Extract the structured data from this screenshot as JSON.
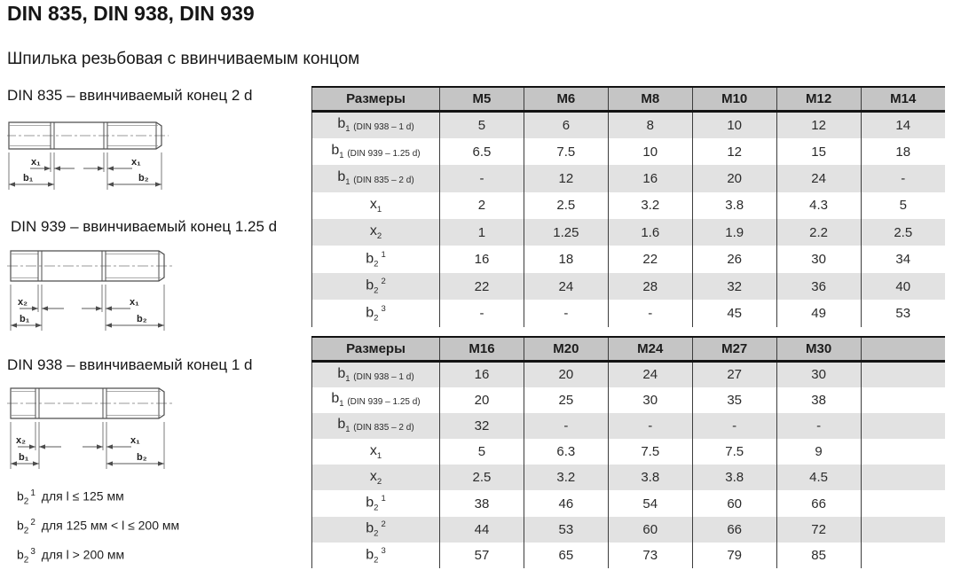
{
  "page": {
    "title": "DIN 835, DIN 938, DIN 939",
    "subtitle": "Шпилька резьбовая с ввинчиваемым концом"
  },
  "drawings": [
    {
      "label": "DIN 835 – ввинчиваемый конец 2 d",
      "dim_labels": {
        "x_left": "x₁",
        "x_right": "x₁",
        "b_left": "b₁",
        "b_right": "b₂"
      }
    },
    {
      "label": "DIN 939 – ввинчиваемый конец 1.25 d",
      "dim_labels": {
        "x_left": "x₂",
        "x_right": "x₁",
        "b_left": "b₁",
        "b_right": "b₂"
      }
    },
    {
      "label": "DIN 938 – ввинчиваемый конец 1 d",
      "dim_labels": {
        "x_left": "x₂",
        "x_right": "x₁",
        "b_left": "b₁",
        "b_right": "b₂"
      }
    }
  ],
  "tables": [
    {
      "columns": [
        "Размеры",
        "M5",
        "M6",
        "M8",
        "M10",
        "M12",
        "M14"
      ],
      "rows": [
        {
          "label": {
            "main": "b",
            "sub": "1",
            "note": "(DIN 938 – 1 d)"
          },
          "values": [
            "5",
            "6",
            "8",
            "10",
            "12",
            "14"
          ]
        },
        {
          "label": {
            "main": "b",
            "sub": "1",
            "note": "(DIN 939 – 1.25 d)"
          },
          "values": [
            "6.5",
            "7.5",
            "10",
            "12",
            "15",
            "18"
          ]
        },
        {
          "label": {
            "main": "b",
            "sub": "1",
            "note": "(DIN 835 – 2 d)"
          },
          "values": [
            "-",
            "12",
            "16",
            "20",
            "24",
            "-"
          ]
        },
        {
          "label": {
            "main": "x",
            "sub": "1"
          },
          "values": [
            "2",
            "2.5",
            "3.2",
            "3.8",
            "4.3",
            "5"
          ]
        },
        {
          "label": {
            "main": "x",
            "sub": "2"
          },
          "values": [
            "1",
            "1.25",
            "1.6",
            "1.9",
            "2.2",
            "2.5"
          ]
        },
        {
          "label": {
            "main": "b",
            "sub": "2",
            "sup": "1"
          },
          "values": [
            "16",
            "18",
            "22",
            "26",
            "30",
            "34"
          ]
        },
        {
          "label": {
            "main": "b",
            "sub": "2",
            "sup": "2"
          },
          "values": [
            "22",
            "24",
            "28",
            "32",
            "36",
            "40"
          ]
        },
        {
          "label": {
            "main": "b",
            "sub": "2",
            "sup": "3"
          },
          "values": [
            "-",
            "-",
            "-",
            "45",
            "49",
            "53"
          ]
        }
      ]
    },
    {
      "columns": [
        "Размеры",
        "M16",
        "M20",
        "M24",
        "M27",
        "M30",
        ""
      ],
      "rows": [
        {
          "label": {
            "main": "b",
            "sub": "1",
            "note": "(DIN 938 – 1 d)"
          },
          "values": [
            "16",
            "20",
            "24",
            "27",
            "30",
            ""
          ]
        },
        {
          "label": {
            "main": "b",
            "sub": "1",
            "note": "(DIN 939 – 1.25 d)"
          },
          "values": [
            "20",
            "25",
            "30",
            "35",
            "38",
            ""
          ]
        },
        {
          "label": {
            "main": "b",
            "sub": "1",
            "note": "(DIN 835 – 2 d)"
          },
          "values": [
            "32",
            "-",
            "-",
            "-",
            "-",
            ""
          ]
        },
        {
          "label": {
            "main": "x",
            "sub": "1"
          },
          "values": [
            "5",
            "6.3",
            "7.5",
            "7.5",
            "9",
            ""
          ]
        },
        {
          "label": {
            "main": "x",
            "sub": "2"
          },
          "values": [
            "2.5",
            "3.2",
            "3.8",
            "3.8",
            "4.5",
            ""
          ]
        },
        {
          "label": {
            "main": "b",
            "sub": "2",
            "sup": "1"
          },
          "values": [
            "38",
            "46",
            "54",
            "60",
            "66",
            ""
          ]
        },
        {
          "label": {
            "main": "b",
            "sub": "2",
            "sup": "2"
          },
          "values": [
            "44",
            "53",
            "60",
            "66",
            "72",
            ""
          ]
        },
        {
          "label": {
            "main": "b",
            "sub": "2",
            "sup": "3"
          },
          "values": [
            "57",
            "65",
            "73",
            "79",
            "85",
            ""
          ]
        }
      ]
    }
  ],
  "footnotes": [
    {
      "sym": {
        "main": "b",
        "sub": "2",
        "sup": "1"
      },
      "text": "для l ≤ 125 мм"
    },
    {
      "sym": {
        "main": "b",
        "sub": "2",
        "sup": "2"
      },
      "text": "для 125 мм < l ≤ 200 мм"
    },
    {
      "sym": {
        "main": "b",
        "sub": "2",
        "sup": "3"
      },
      "text": "для l > 200 мм"
    }
  ],
  "colors": {
    "header_bg": "#c5c5c5",
    "stripe_bg": "#e2e2e2",
    "grid_border": "#3d3d3d",
    "heavy_border": "#131313",
    "drawing_line": "#4d4d4d",
    "text": "#2a2a2a"
  }
}
